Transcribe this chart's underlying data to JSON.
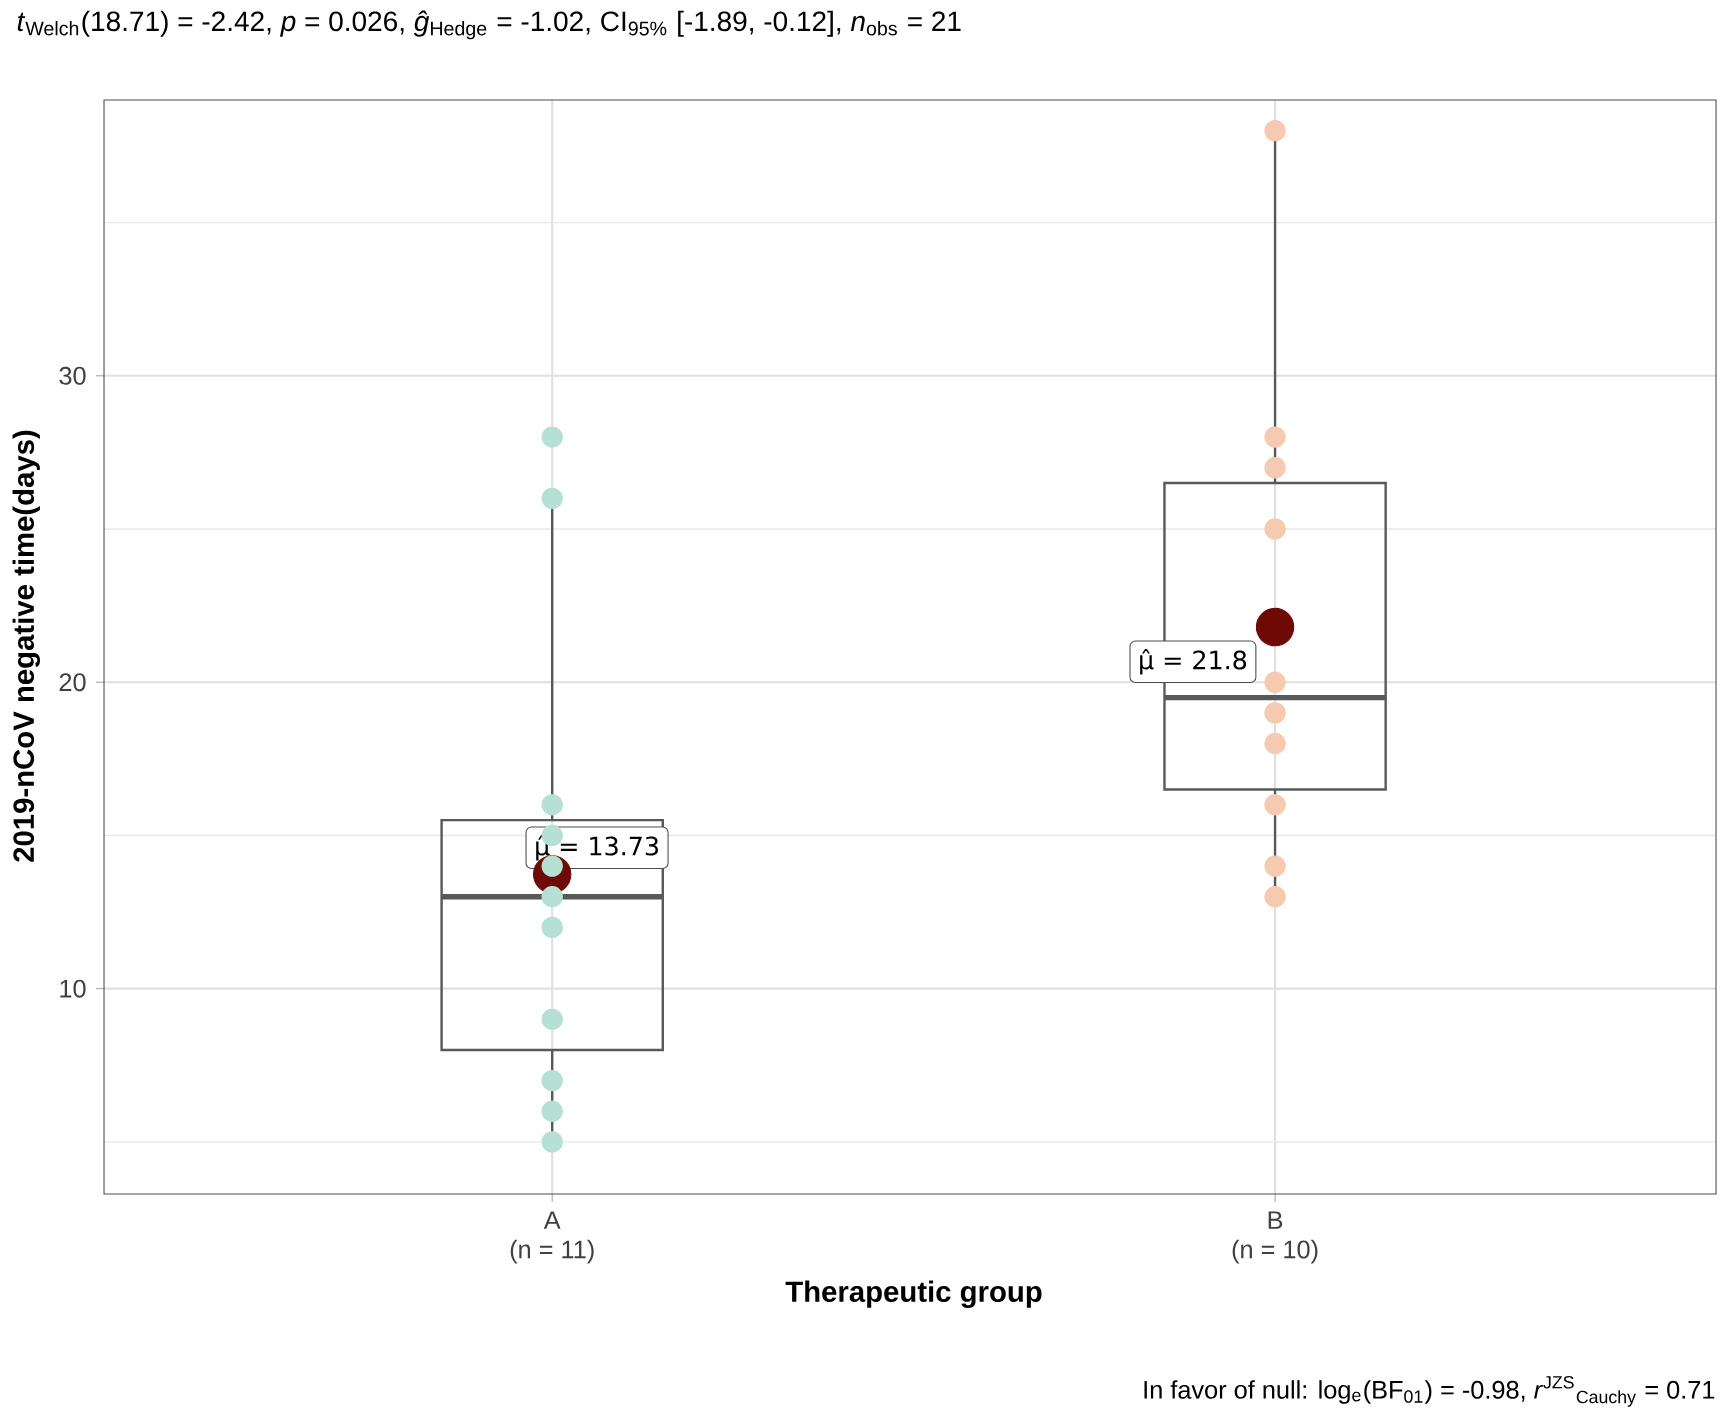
{
  "chart_data": {
    "type": "box",
    "title": "*t*$_{Welch}$(18.71) = -2.42, *p* = 0.026, *ĝ*$_{Hedge}$ = -1.02, CI$_{95%}$ [-1.89, -0.12], *n*$_{obs}$ = 21",
    "xlabel": "Therapeutic group",
    "ylabel": "2019-nCoV negative time(days)",
    "categories": [
      "A",
      "B"
    ],
    "boxes": [
      {
        "low": 5,
        "q1": 8,
        "median": 13,
        "q3": 15.5,
        "high": 26,
        "mean": 13.73
      },
      {
        "low": 13,
        "q1": 16.5,
        "median": 19.5,
        "q3": 26.5,
        "high": 38,
        "mean": 21.8
      }
    ],
    "series": [
      {
        "type": "scatter",
        "color": "#b5e0d3",
        "x": [
          "A",
          "A",
          "A",
          "A",
          "A",
          "A",
          "A",
          "A",
          "A",
          "A",
          "A"
        ],
        "values": [
          28,
          26,
          16,
          15,
          14,
          13,
          12,
          9,
          7,
          6,
          5
        ]
      },
      {
        "type": "scatter",
        "color": "#f6c9b1",
        "x": [
          "B",
          "B",
          "B",
          "B",
          "B",
          "B",
          "B",
          "B",
          "B",
          "B"
        ],
        "values": [
          38,
          28,
          27,
          25,
          20,
          19,
          18,
          16,
          14,
          13
        ]
      }
    ],
    "ylim": [
      3.3,
      39
    ],
    "yticks": [
      {
        "value": 5,
        "label": null
      },
      10,
      {
        "value": 15,
        "label": null
      },
      20,
      {
        "value": 25,
        "label": null
      },
      30,
      {
        "value": 35,
        "label": null
      }
    ],
    "grid": true,
    "annotations": [
      "(n = 11)",
      "(n = 10)",
      "μ̂ = 13.73",
      "μ̂ = 21.8",
      "In favor of null: log$_{e}$(BF$_{01}$) = -0.98, *r*$^{JZS}$$_{Cauchy}$ = 0.71"
    ]
  }
}
